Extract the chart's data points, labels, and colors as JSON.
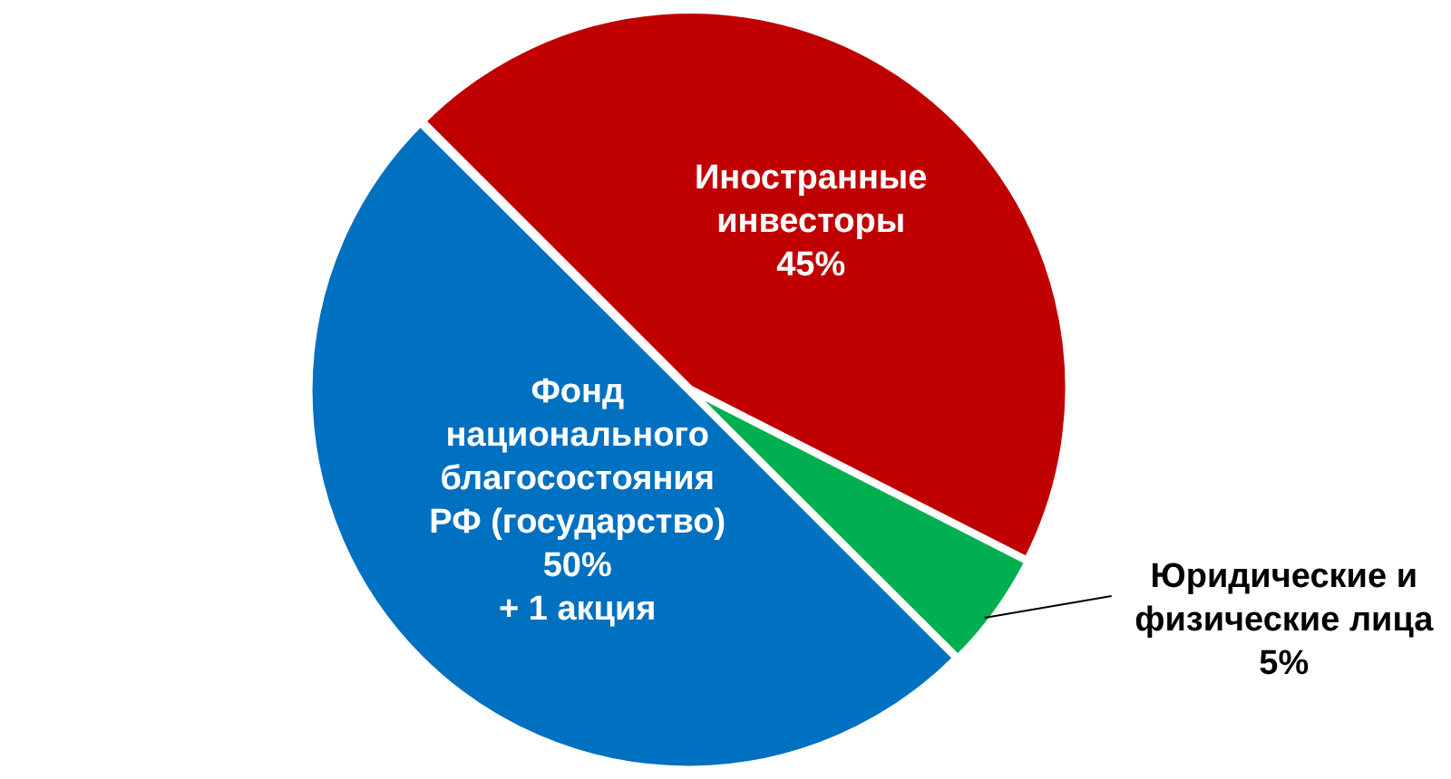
{
  "chart_data": {
    "type": "pie",
    "categories": [
      "Иностранные инвесторы",
      "Юридические и физические лица",
      "Фонд национального благосостояния РФ (государство)"
    ],
    "values": [
      45,
      5,
      50
    ],
    "colors": [
      "#c00000",
      "#00b050",
      "#0070c0"
    ],
    "value_labels": [
      "45%",
      "5%",
      "50%"
    ],
    "annotations": [
      {
        "text": "+ 1 акция",
        "x": "Фонд национального благосостояния РФ (государство)"
      }
    ]
  }
}
